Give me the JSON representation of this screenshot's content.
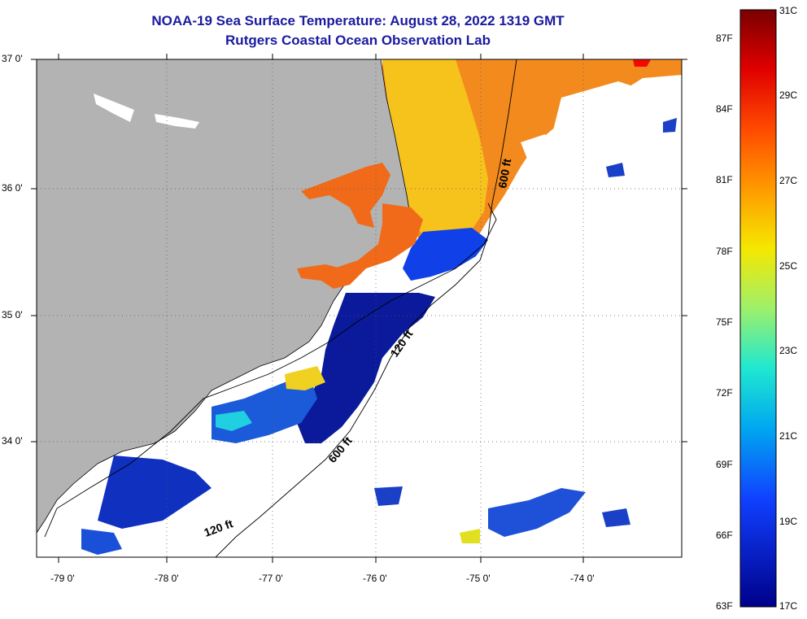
{
  "title": "NOAA-19 Sea Surface Temperature:  August 28, 2022 1319 GMT",
  "subtitle": "Rutgers Coastal Ocean Observation Lab",
  "lat_labels": [
    "37 0'",
    "36 0'",
    "35 0'",
    "34 0'"
  ],
  "lon_labels": [
    "-79 0'",
    "-78 0'",
    "-77 0'",
    "-76 0'",
    "-75 0'",
    "-74 0'"
  ],
  "contour_labels": [
    "600 ft",
    "600 ft",
    "120 ft",
    "120 ft"
  ],
  "colorbar": {
    "fahrenheit": [
      "87F",
      "84F",
      "81F",
      "78F",
      "75F",
      "72F",
      "69F",
      "66F",
      "63F"
    ],
    "celsius": [
      "31C",
      "29C",
      "27C",
      "25C",
      "23C",
      "21C",
      "19C",
      "17C"
    ]
  },
  "colors": {
    "land": "#b3b3b3",
    "title": "#1a1aa0",
    "warm": "#f28a1e",
    "yellow": "#f6c21c",
    "cold": "#0a1a9a"
  }
}
